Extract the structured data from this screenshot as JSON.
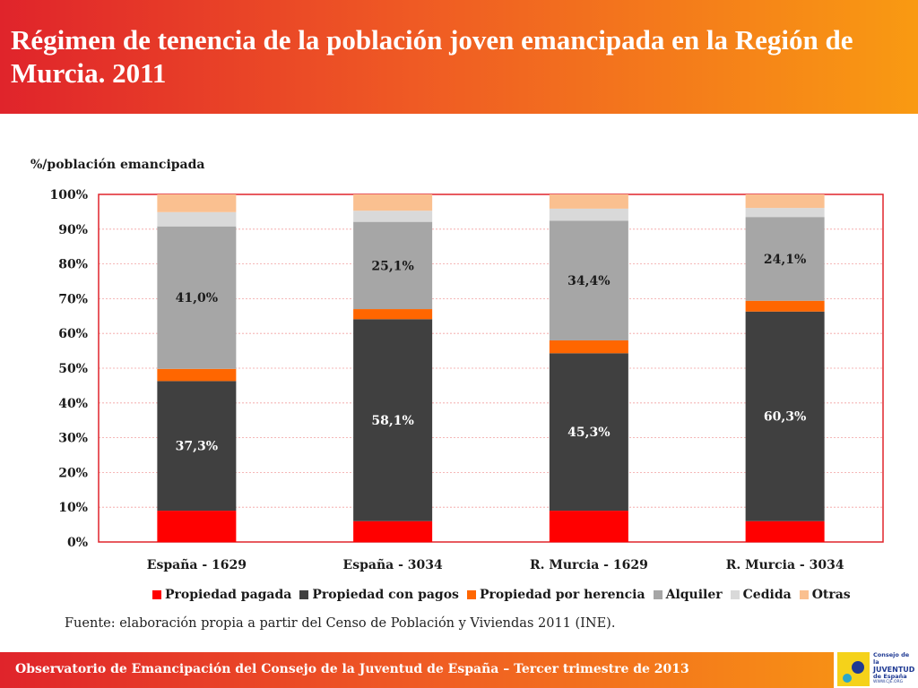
{
  "header": {
    "title": "Régimen de tenencia de la población joven emancipada en la Región de Murcia. 2011"
  },
  "chart_data": {
    "type": "bar",
    "stacked": true,
    "ylabel": "%/población emancipada",
    "ylim": [
      0,
      100
    ],
    "yticks": [
      "0%",
      "10%",
      "20%",
      "30%",
      "40%",
      "50%",
      "60%",
      "70%",
      "80%",
      "90%",
      "100%"
    ],
    "categories": [
      "España - 1629",
      "España - 3034",
      "R. Murcia - 1629",
      "R. Murcia - 3034"
    ],
    "series": [
      {
        "name": "Propiedad pagada",
        "color": "#ff0000",
        "values": [
          9.0,
          6.0,
          9.0,
          6.0
        ]
      },
      {
        "name": "Propiedad con pagos",
        "color": "#404040",
        "values": [
          37.3,
          58.1,
          45.3,
          60.3
        ],
        "labels": [
          "37,3%",
          "58,1%",
          "45,3%",
          "60,3%"
        ]
      },
      {
        "name": "Propiedad por herencia",
        "color": "#ff6600",
        "values": [
          3.5,
          2.9,
          3.7,
          3.1
        ]
      },
      {
        "name": "Alquiler",
        "color": "#a6a6a6",
        "values": [
          41.0,
          25.1,
          34.4,
          24.1
        ],
        "labels": [
          "41,0%",
          "25,1%",
          "34,4%",
          "24,1%"
        ]
      },
      {
        "name": "Cedida",
        "color": "#d9d9d9",
        "values": [
          4.1,
          3.2,
          3.5,
          2.6
        ]
      },
      {
        "name": "Otras",
        "color": "#fac090",
        "values": [
          5.1,
          4.7,
          4.1,
          3.9
        ]
      }
    ],
    "legend_position": "bottom"
  },
  "source": "Fuente: elaboración propia a partir del Censo de Población y Viviendas 2011 (INE).",
  "footer": {
    "text": "Observatorio de Emancipación del Consejo de la Juventud de España – Tercer trimestre de 2013"
  },
  "logo": {
    "name_lines": [
      "Consejo de la",
      "JUVENTUD",
      "de España"
    ],
    "url": "WWW.CJE.ORG"
  }
}
